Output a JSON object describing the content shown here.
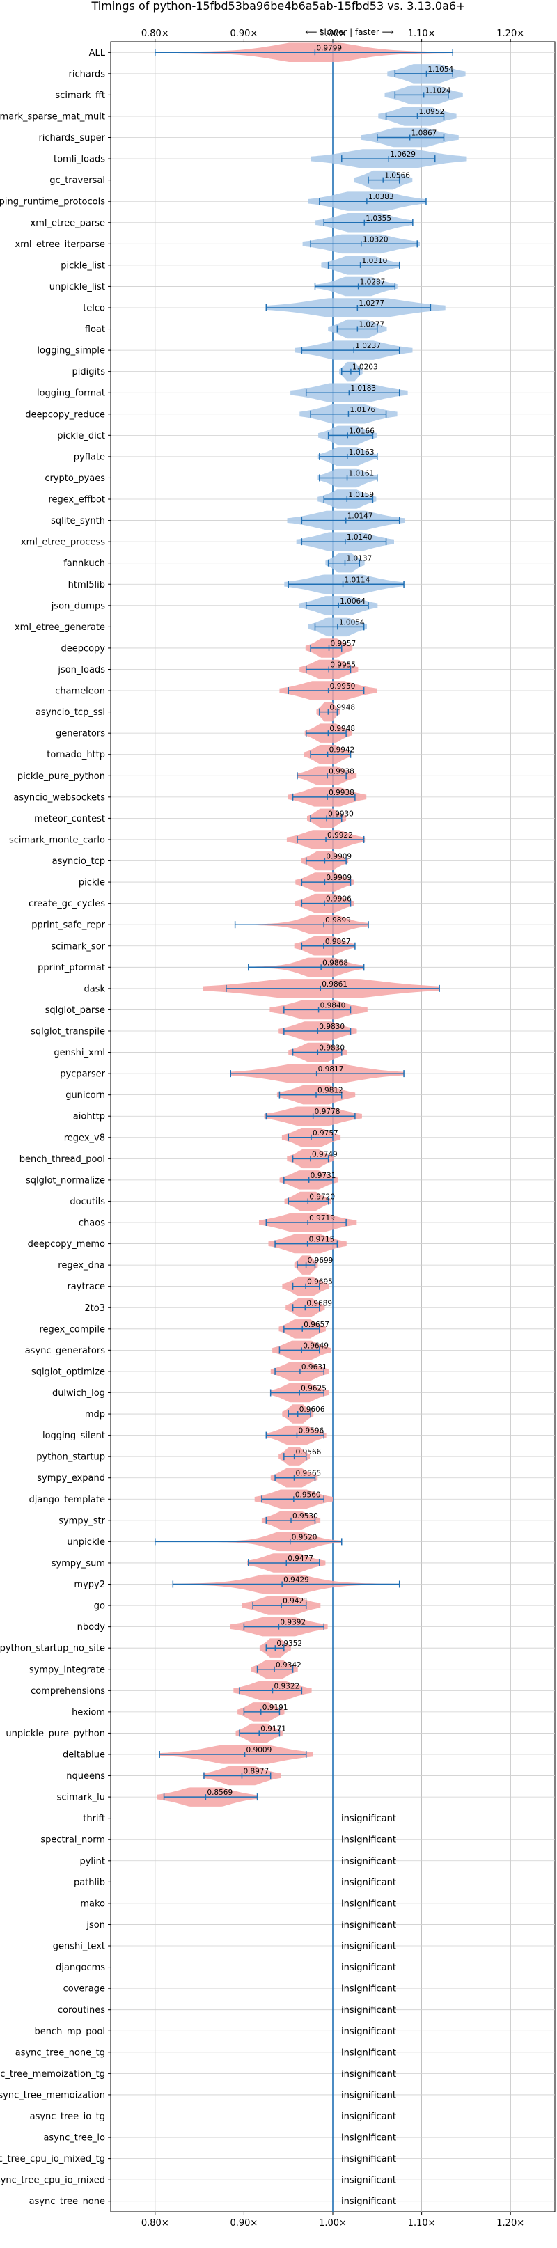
{
  "chart_data": {
    "type": "violin",
    "title": "Timings of python-15fbd53ba96be4b6a5ab-15fbd53 vs. 3.13.0a6+",
    "direction_hint": "⟵ slower | faster ⟶",
    "xlim": [
      0.75,
      1.25
    ],
    "xticks": [
      0.8,
      0.9,
      1.0,
      1.1,
      1.2
    ],
    "xtick_labels": [
      "0.80×",
      "0.90×",
      "1.00×",
      "1.10×",
      "1.20×"
    ],
    "grid": true,
    "colors": {
      "faster": "#a9c8e8",
      "slower": "#f4a3a3",
      "line": "#1f6fb4",
      "ref": "#1f6fb4"
    },
    "insignificant_label": "insignificant",
    "benchmarks": [
      {
        "name": "ALL",
        "value": 0.9799,
        "low": 0.8,
        "high": 1.135,
        "spread": 0.04,
        "label": "0.9799"
      },
      {
        "name": "richards",
        "value": 1.1054,
        "low": 1.07,
        "high": 1.135,
        "spread": 0.02,
        "label": "1.1054"
      },
      {
        "name": "scimark_fft",
        "value": 1.1024,
        "low": 1.07,
        "high": 1.13,
        "spread": 0.02,
        "label": "1.1024"
      },
      {
        "name": "scimark_sparse_mat_mult",
        "value": 1.0952,
        "low": 1.06,
        "high": 1.125,
        "spread": 0.02,
        "label": "1.0952"
      },
      {
        "name": "richards_super",
        "value": 1.0867,
        "low": 1.05,
        "high": 1.125,
        "spread": 0.025,
        "label": "1.0867"
      },
      {
        "name": "tomli_loads",
        "value": 1.0629,
        "low": 1.01,
        "high": 1.115,
        "spread": 0.04,
        "label": "1.0629"
      },
      {
        "name": "gc_traversal",
        "value": 1.0566,
        "low": 1.04,
        "high": 1.075,
        "spread": 0.015,
        "label": "1.0566"
      },
      {
        "name": "typing_runtime_protocols",
        "value": 1.0383,
        "low": 0.985,
        "high": 1.105,
        "spread": 0.03,
        "label": "1.0383"
      },
      {
        "name": "xml_etree_parse",
        "value": 1.0355,
        "low": 0.99,
        "high": 1.09,
        "spread": 0.025,
        "label": "1.0355"
      },
      {
        "name": "xml_etree_iterparse",
        "value": 1.032,
        "low": 0.975,
        "high": 1.095,
        "spread": 0.03,
        "label": "1.0320"
      },
      {
        "name": "pickle_list",
        "value": 1.031,
        "low": 0.995,
        "high": 1.075,
        "spread": 0.02,
        "label": "1.0310"
      },
      {
        "name": "unpickle_list",
        "value": 1.0287,
        "low": 0.98,
        "high": 1.07,
        "spread": 0.02,
        "label": "1.0287"
      },
      {
        "name": "telco",
        "value": 1.0277,
        "low": 0.925,
        "high": 1.11,
        "spread": 0.045,
        "label": "1.0277"
      },
      {
        "name": "float",
        "value": 1.0277,
        "low": 1.005,
        "high": 1.05,
        "spread": 0.015,
        "label": "1.0277"
      },
      {
        "name": "logging_simple",
        "value": 1.0237,
        "low": 0.965,
        "high": 1.075,
        "spread": 0.03,
        "label": "1.0237"
      },
      {
        "name": "pidigits",
        "value": 1.0203,
        "low": 1.01,
        "high": 1.03,
        "spread": 0.006,
        "label": "1.0203"
      },
      {
        "name": "logging_format",
        "value": 1.0183,
        "low": 0.97,
        "high": 1.075,
        "spread": 0.03,
        "label": "1.0183"
      },
      {
        "name": "deepcopy_reduce",
        "value": 1.0176,
        "low": 0.975,
        "high": 1.06,
        "spread": 0.025,
        "label": "1.0176"
      },
      {
        "name": "pickle_dict",
        "value": 1.0166,
        "low": 0.995,
        "high": 1.045,
        "spread": 0.015,
        "label": "1.0166"
      },
      {
        "name": "pyflate",
        "value": 1.0163,
        "low": 0.985,
        "high": 1.05,
        "spread": 0.015,
        "label": "1.0163"
      },
      {
        "name": "crypto_pyaes",
        "value": 1.0161,
        "low": 0.985,
        "high": 1.05,
        "spread": 0.015,
        "label": "1.0161"
      },
      {
        "name": "regex_effbot",
        "value": 1.0159,
        "low": 0.99,
        "high": 1.045,
        "spread": 0.015,
        "label": "1.0159"
      },
      {
        "name": "sqlite_synth",
        "value": 1.0147,
        "low": 0.965,
        "high": 1.075,
        "spread": 0.03,
        "label": "1.0147"
      },
      {
        "name": "xml_etree_process",
        "value": 1.014,
        "low": 0.965,
        "high": 1.06,
        "spread": 0.025,
        "label": "1.0140"
      },
      {
        "name": "fannkuch",
        "value": 1.0137,
        "low": 0.995,
        "high": 1.03,
        "spread": 0.01,
        "label": "1.0137"
      },
      {
        "name": "html5lib",
        "value": 1.0114,
        "low": 0.95,
        "high": 1.08,
        "spread": 0.03,
        "label": "1.0114"
      },
      {
        "name": "json_dumps",
        "value": 1.0064,
        "low": 0.97,
        "high": 1.04,
        "spread": 0.02,
        "label": "1.0064"
      },
      {
        "name": "xml_etree_generate",
        "value": 1.0054,
        "low": 0.98,
        "high": 1.035,
        "spread": 0.015,
        "label": "1.0054"
      },
      {
        "name": "deepcopy",
        "value": 0.9957,
        "low": 0.975,
        "high": 1.01,
        "spread": 0.012,
        "label": "0.9957"
      },
      {
        "name": "json_loads",
        "value": 0.9955,
        "low": 0.97,
        "high": 1.02,
        "spread": 0.015,
        "label": "0.9955"
      },
      {
        "name": "chameleon",
        "value": 0.995,
        "low": 0.95,
        "high": 1.035,
        "spread": 0.025,
        "label": "0.9950"
      },
      {
        "name": "asyncio_tcp_ssl",
        "value": 0.9948,
        "low": 0.985,
        "high": 1.005,
        "spread": 0.006,
        "label": "0.9948"
      },
      {
        "name": "generators",
        "value": 0.9948,
        "low": 0.97,
        "high": 1.015,
        "spread": 0.012,
        "label": "0.9948"
      },
      {
        "name": "tornado_http",
        "value": 0.9942,
        "low": 0.975,
        "high": 1.02,
        "spread": 0.012,
        "label": "0.9942"
      },
      {
        "name": "pickle_pure_python",
        "value": 0.9938,
        "low": 0.96,
        "high": 1.015,
        "spread": 0.015,
        "label": "0.9938"
      },
      {
        "name": "asyncio_websockets",
        "value": 0.9938,
        "low": 0.955,
        "high": 1.025,
        "spread": 0.02,
        "label": "0.9938"
      },
      {
        "name": "meteor_contest",
        "value": 0.993,
        "low": 0.975,
        "high": 1.01,
        "spread": 0.01,
        "label": "0.9930"
      },
      {
        "name": "scimark_monte_carlo",
        "value": 0.9922,
        "low": 0.96,
        "high": 1.035,
        "spread": 0.02,
        "label": "0.9922"
      },
      {
        "name": "asyncio_tcp",
        "value": 0.9909,
        "low": 0.97,
        "high": 1.015,
        "spread": 0.012,
        "label": "0.9909"
      },
      {
        "name": "pickle",
        "value": 0.9909,
        "low": 0.965,
        "high": 1.02,
        "spread": 0.015,
        "label": "0.9909"
      },
      {
        "name": "create_gc_cycles",
        "value": 0.9906,
        "low": 0.965,
        "high": 1.02,
        "spread": 0.015,
        "label": "0.9906"
      },
      {
        "name": "pprint_safe_repr",
        "value": 0.9899,
        "low": 0.89,
        "high": 1.04,
        "spread": 0.02,
        "label": "0.9899"
      },
      {
        "name": "scimark_sor",
        "value": 0.9897,
        "low": 0.965,
        "high": 1.025,
        "spread": 0.015,
        "label": "0.9897"
      },
      {
        "name": "pprint_pformat",
        "value": 0.9868,
        "low": 0.905,
        "high": 1.035,
        "spread": 0.02,
        "label": "0.9868"
      },
      {
        "name": "dask",
        "value": 0.9861,
        "low": 0.88,
        "high": 1.12,
        "spread": 0.06,
        "label": "0.9861"
      },
      {
        "name": "sqlglot_parse",
        "value": 0.984,
        "low": 0.945,
        "high": 1.02,
        "spread": 0.025,
        "label": "0.9840"
      },
      {
        "name": "sqlglot_transpile",
        "value": 0.983,
        "low": 0.945,
        "high": 1.02,
        "spread": 0.02,
        "label": "0.9830"
      },
      {
        "name": "genshi_xml",
        "value": 0.983,
        "low": 0.955,
        "high": 1.01,
        "spread": 0.015,
        "label": "0.9830"
      },
      {
        "name": "pycparser",
        "value": 0.9817,
        "low": 0.885,
        "high": 1.08,
        "spread": 0.04,
        "label": "0.9817"
      },
      {
        "name": "gunicorn",
        "value": 0.9812,
        "low": 0.94,
        "high": 1.01,
        "spread": 0.02,
        "label": "0.9812"
      },
      {
        "name": "aiohttp",
        "value": 0.9778,
        "low": 0.925,
        "high": 1.025,
        "spread": 0.025,
        "label": "0.9778"
      },
      {
        "name": "regex_v8",
        "value": 0.9757,
        "low": 0.95,
        "high": 1.0,
        "spread": 0.015,
        "label": "0.9757"
      },
      {
        "name": "bench_thread_pool",
        "value": 0.9749,
        "low": 0.955,
        "high": 0.995,
        "spread": 0.012,
        "label": "0.9749"
      },
      {
        "name": "sqlglot_normalize",
        "value": 0.9731,
        "low": 0.945,
        "high": 1.0,
        "spread": 0.015,
        "label": "0.9731"
      },
      {
        "name": "docutils",
        "value": 0.972,
        "low": 0.95,
        "high": 0.995,
        "spread": 0.012,
        "label": "0.9720"
      },
      {
        "name": "chaos",
        "value": 0.9719,
        "low": 0.925,
        "high": 1.015,
        "spread": 0.025,
        "label": "0.9719"
      },
      {
        "name": "deepcopy_memo",
        "value": 0.9715,
        "low": 0.935,
        "high": 1.005,
        "spread": 0.02,
        "label": "0.9715"
      },
      {
        "name": "regex_dna",
        "value": 0.9699,
        "low": 0.96,
        "high": 0.98,
        "spread": 0.006,
        "label": "0.9699"
      },
      {
        "name": "raytrace",
        "value": 0.9695,
        "low": 0.955,
        "high": 0.985,
        "spread": 0.012,
        "label": "0.9695"
      },
      {
        "name": "2to3",
        "value": 0.9689,
        "low": 0.955,
        "high": 0.985,
        "spread": 0.01,
        "label": "0.9689"
      },
      {
        "name": "regex_compile",
        "value": 0.9657,
        "low": 0.945,
        "high": 0.985,
        "spread": 0.012,
        "label": "0.9657"
      },
      {
        "name": "async_generators",
        "value": 0.9649,
        "low": 0.94,
        "high": 0.985,
        "spread": 0.015,
        "label": "0.9649"
      },
      {
        "name": "sqlglot_optimize",
        "value": 0.9631,
        "low": 0.935,
        "high": 0.99,
        "spread": 0.015,
        "label": "0.9631"
      },
      {
        "name": "dulwich_log",
        "value": 0.9625,
        "low": 0.93,
        "high": 0.99,
        "spread": 0.015,
        "label": "0.9625"
      },
      {
        "name": "mdp",
        "value": 0.9606,
        "low": 0.95,
        "high": 0.975,
        "spread": 0.008,
        "label": "0.9606"
      },
      {
        "name": "logging_silent",
        "value": 0.9596,
        "low": 0.925,
        "high": 0.99,
        "spread": 0.015,
        "label": "0.9596"
      },
      {
        "name": "python_startup",
        "value": 0.9566,
        "low": 0.945,
        "high": 0.97,
        "spread": 0.008,
        "label": "0.9566"
      },
      {
        "name": "sympy_expand",
        "value": 0.9565,
        "low": 0.935,
        "high": 0.98,
        "spread": 0.012,
        "label": "0.9565"
      },
      {
        "name": "django_template",
        "value": 0.956,
        "low": 0.92,
        "high": 0.99,
        "spread": 0.02,
        "label": "0.9560"
      },
      {
        "name": "sympy_str",
        "value": 0.953,
        "low": 0.925,
        "high": 0.98,
        "spread": 0.015,
        "label": "0.9530"
      },
      {
        "name": "unpickle",
        "value": 0.952,
        "low": 0.8,
        "high": 1.01,
        "spread": 0.02,
        "label": "0.9520"
      },
      {
        "name": "sympy_sum",
        "value": 0.9477,
        "low": 0.905,
        "high": 0.985,
        "spread": 0.02,
        "label": "0.9477"
      },
      {
        "name": "mypy2",
        "value": 0.9429,
        "low": 0.82,
        "high": 1.075,
        "spread": 0.03,
        "label": "0.9429"
      },
      {
        "name": "go",
        "value": 0.9421,
        "low": 0.91,
        "high": 0.97,
        "spread": 0.02,
        "label": "0.9421"
      },
      {
        "name": "nbody",
        "value": 0.9392,
        "low": 0.9,
        "high": 0.99,
        "spread": 0.025,
        "label": "0.9392"
      },
      {
        "name": "python_startup_no_site",
        "value": 0.9352,
        "low": 0.925,
        "high": 0.945,
        "spread": 0.008,
        "label": "0.9352"
      },
      {
        "name": "sympy_integrate",
        "value": 0.9342,
        "low": 0.915,
        "high": 0.955,
        "spread": 0.012,
        "label": "0.9342"
      },
      {
        "name": "comprehensions",
        "value": 0.9322,
        "low": 0.895,
        "high": 0.965,
        "spread": 0.02,
        "label": "0.9322"
      },
      {
        "name": "hexiom",
        "value": 0.9191,
        "low": 0.9,
        "high": 0.94,
        "spread": 0.012,
        "label": "0.9191"
      },
      {
        "name": "unpickle_pure_python",
        "value": 0.9171,
        "low": 0.895,
        "high": 0.94,
        "spread": 0.012,
        "label": "0.9171"
      },
      {
        "name": "deltablue",
        "value": 0.9009,
        "low": 0.805,
        "high": 0.97,
        "spread": 0.035,
        "label": "0.9009"
      },
      {
        "name": "nqueens",
        "value": 0.8977,
        "low": 0.855,
        "high": 0.93,
        "spread": 0.02,
        "label": "0.8977"
      },
      {
        "name": "scimark_lu",
        "value": 0.8569,
        "low": 0.81,
        "high": 0.915,
        "spread": 0.025,
        "label": "0.8569"
      },
      {
        "name": "thrift",
        "insignificant": true
      },
      {
        "name": "spectral_norm",
        "insignificant": true
      },
      {
        "name": "pylint",
        "insignificant": true
      },
      {
        "name": "pathlib",
        "insignificant": true
      },
      {
        "name": "mako",
        "insignificant": true
      },
      {
        "name": "json",
        "insignificant": true
      },
      {
        "name": "genshi_text",
        "insignificant": true
      },
      {
        "name": "djangocms",
        "insignificant": true
      },
      {
        "name": "coverage",
        "insignificant": true
      },
      {
        "name": "coroutines",
        "insignificant": true
      },
      {
        "name": "bench_mp_pool",
        "insignificant": true
      },
      {
        "name": "async_tree_none_tg",
        "insignificant": true
      },
      {
        "name": "async_tree_memoization_tg",
        "insignificant": true
      },
      {
        "name": "async_tree_memoization",
        "insignificant": true
      },
      {
        "name": "async_tree_io_tg",
        "insignificant": true
      },
      {
        "name": "async_tree_io",
        "insignificant": true
      },
      {
        "name": "async_tree_cpu_io_mixed_tg",
        "insignificant": true
      },
      {
        "name": "async_tree_cpu_io_mixed",
        "insignificant": true
      },
      {
        "name": "async_tree_none",
        "insignificant": true
      }
    ]
  }
}
